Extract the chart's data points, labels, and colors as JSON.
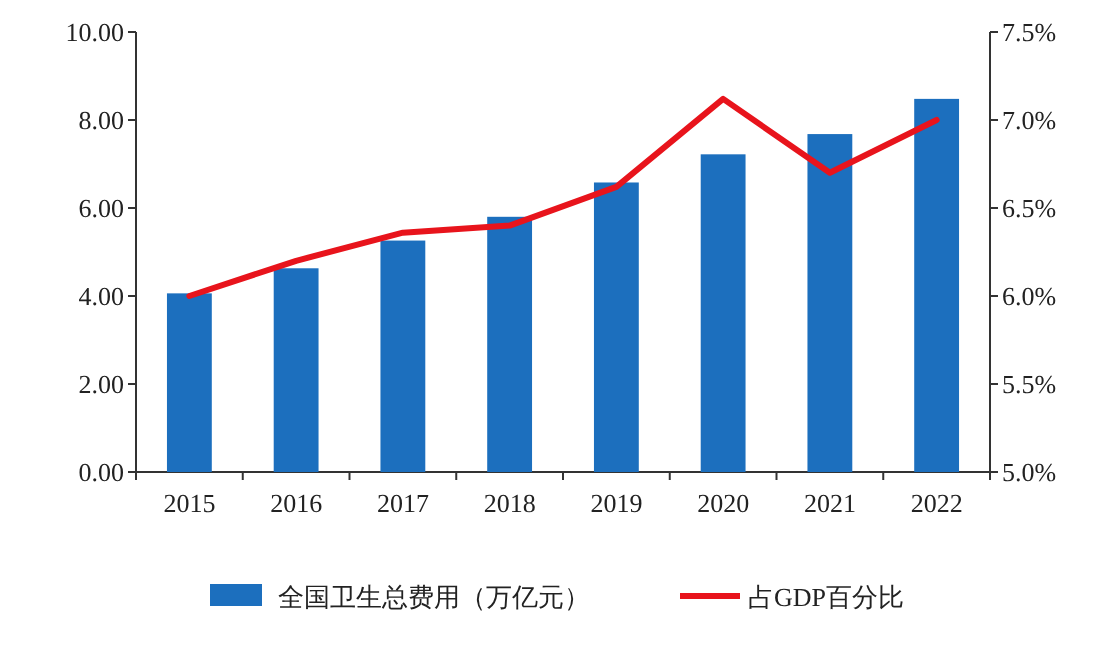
{
  "chart_data": {
    "type": "bar",
    "categories": [
      "2015",
      "2016",
      "2017",
      "2018",
      "2019",
      "2020",
      "2021",
      "2022"
    ],
    "series": [
      {
        "name": "全国卫生总费用（万亿元）",
        "color": "#1c6fbe",
        "values": [
          4.06,
          4.63,
          5.26,
          5.8,
          6.58,
          7.22,
          7.68,
          8.48
        ]
      },
      {
        "name": "占GDP百分比",
        "type": "line",
        "axis": "y2",
        "color": "#e8141c",
        "values": [
          6.0,
          6.2,
          6.36,
          6.4,
          6.62,
          7.12,
          6.7,
          7.0
        ]
      }
    ],
    "ylim": [
      0,
      10
    ],
    "yticks": [
      {
        "value": 0,
        "label": "0.00"
      },
      {
        "value": 2,
        "label": "2.00"
      },
      {
        "value": 4,
        "label": "4.00"
      },
      {
        "value": 6,
        "label": "6.00"
      },
      {
        "value": 8,
        "label": "8.00"
      },
      {
        "value": 10,
        "label": "10.00"
      }
    ],
    "y2lim": [
      5,
      7.5
    ],
    "y2ticks": [
      {
        "value": 5,
        "label": "5.0%"
      },
      {
        "value": 5.5,
        "label": "5.5%"
      },
      {
        "value": 6,
        "label": "6.0%"
      },
      {
        "value": 6.5,
        "label": "6.5%"
      },
      {
        "value": 7,
        "label": "7.0%"
      },
      {
        "value": 7.5,
        "label": "7.5%"
      }
    ],
    "legend": "bottom"
  }
}
